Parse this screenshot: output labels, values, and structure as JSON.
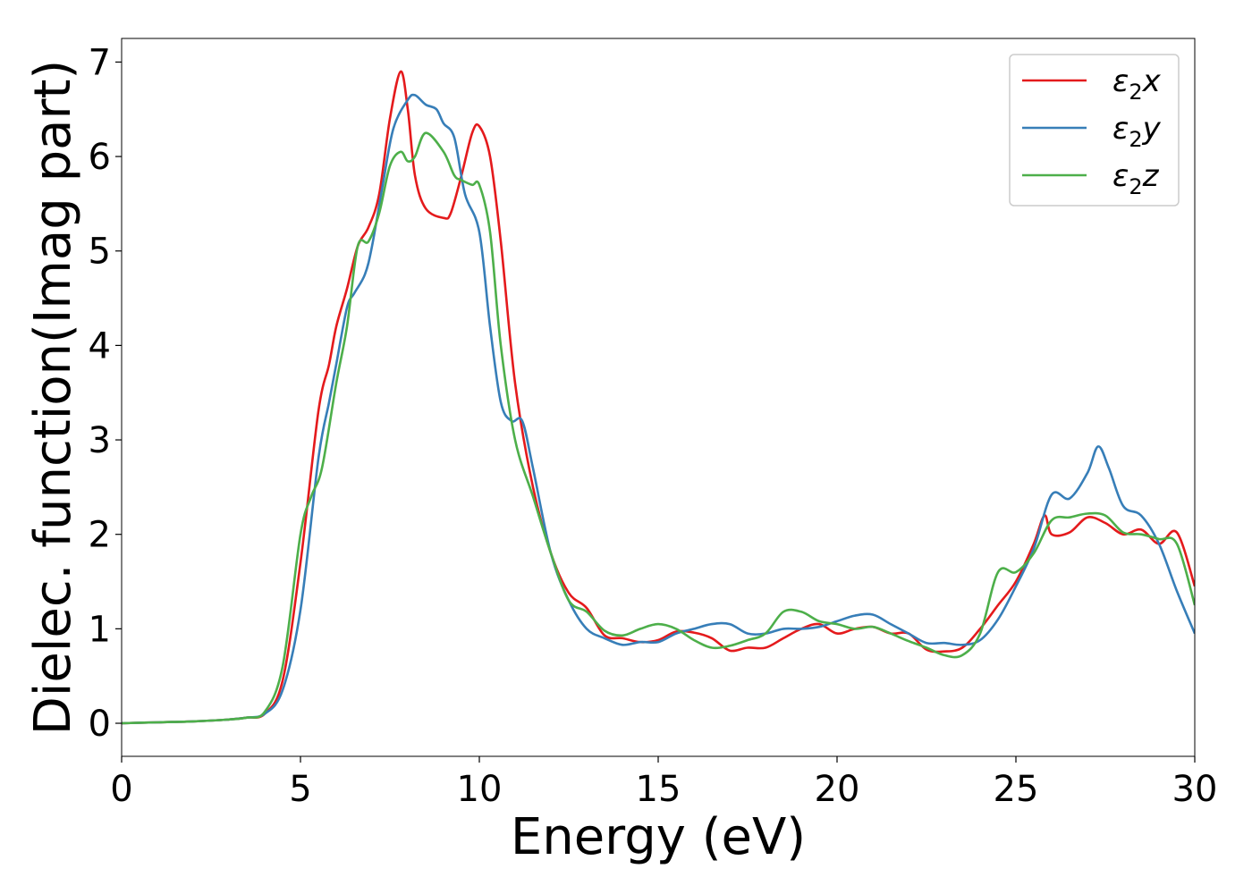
{
  "chart_data": {
    "type": "line",
    "title": "",
    "xlabel": "Energy (eV)",
    "ylabel": "Dielec. function(Imag part)",
    "xlim": [
      0,
      30
    ],
    "ylim": [
      -0.35,
      7.25
    ],
    "xticks": [
      0,
      5,
      10,
      15,
      20,
      25,
      30
    ],
    "yticks": [
      0,
      1,
      2,
      3,
      4,
      5,
      6,
      7
    ],
    "grid": false,
    "legend_position": "top-right",
    "series": [
      {
        "name": "ε2x",
        "legend_base": "ε",
        "legend_sub": "2",
        "legend_var": "x",
        "color": "#e41a1c",
        "x": [
          0,
          1,
          2,
          3,
          3.5,
          4,
          4.5,
          5,
          5.5,
          5.8,
          6,
          6.3,
          6.6,
          6.9,
          7.2,
          7.5,
          7.8,
          8,
          8.2,
          8.5,
          9,
          9.2,
          9.5,
          9.8,
          10,
          10.3,
          10.6,
          11,
          11.5,
          12,
          12.5,
          13,
          13.5,
          14,
          14.5,
          15,
          15.5,
          16,
          16.5,
          17,
          17.5,
          18,
          18.5,
          19,
          19.5,
          20,
          20.5,
          21,
          21.5,
          22,
          22.5,
          23,
          23.5,
          24,
          24.5,
          25,
          25.5,
          25.8,
          26,
          26.5,
          27,
          27.5,
          28,
          28.5,
          29,
          29.5,
          30
        ],
        "y": [
          0,
          0.01,
          0.02,
          0.04,
          0.06,
          0.1,
          0.45,
          1.7,
          3.3,
          3.8,
          4.2,
          4.6,
          5.05,
          5.25,
          5.6,
          6.4,
          6.9,
          6.5,
          5.8,
          5.45,
          5.35,
          5.4,
          5.8,
          6.25,
          6.32,
          6.0,
          5.1,
          3.6,
          2.5,
          1.8,
          1.38,
          1.22,
          0.93,
          0.9,
          0.86,
          0.88,
          0.97,
          0.96,
          0.9,
          0.77,
          0.8,
          0.8,
          0.9,
          1.0,
          1.05,
          0.95,
          1.0,
          1.02,
          0.95,
          0.95,
          0.78,
          0.76,
          0.8,
          1.0,
          1.25,
          1.5,
          1.9,
          2.2,
          2.0,
          2.02,
          2.18,
          2.12,
          2.0,
          2.05,
          1.9,
          2.02,
          1.45
        ]
      },
      {
        "name": "ε2y",
        "legend_base": "ε",
        "legend_sub": "2",
        "legend_var": "y",
        "color": "#377eb8",
        "x": [
          0,
          1,
          2,
          3,
          3.5,
          4,
          4.5,
          5,
          5.5,
          5.8,
          6,
          6.3,
          6.5,
          6.8,
          7,
          7.3,
          7.6,
          8,
          8.2,
          8.5,
          8.8,
          9,
          9.3,
          9.6,
          10,
          10.3,
          10.6,
          10.9,
          11.2,
          11.5,
          12,
          12.5,
          13,
          13.5,
          14,
          14.5,
          15,
          15.5,
          16,
          16.5,
          17,
          17.5,
          18,
          18.5,
          19,
          19.5,
          20,
          20.5,
          21,
          21.5,
          22,
          22.5,
          23,
          23.5,
          24,
          24.5,
          25,
          25.5,
          26,
          26.5,
          27,
          27.3,
          27.6,
          28,
          28.5,
          29,
          29.5,
          30
        ],
        "y": [
          0,
          0.01,
          0.02,
          0.04,
          0.06,
          0.1,
          0.35,
          1.2,
          2.8,
          3.4,
          3.8,
          4.4,
          4.55,
          4.75,
          5.05,
          5.7,
          6.3,
          6.6,
          6.65,
          6.55,
          6.5,
          6.35,
          6.2,
          5.6,
          5.2,
          4.2,
          3.4,
          3.2,
          3.2,
          2.7,
          1.8,
          1.3,
          1.0,
          0.9,
          0.83,
          0.86,
          0.86,
          0.95,
          1.0,
          1.05,
          1.05,
          0.95,
          0.95,
          1.0,
          1.0,
          1.02,
          1.08,
          1.14,
          1.15,
          1.05,
          0.95,
          0.85,
          0.85,
          0.83,
          0.88,
          1.1,
          1.45,
          1.85,
          2.42,
          2.38,
          2.65,
          2.93,
          2.7,
          2.3,
          2.2,
          1.9,
          1.4,
          0.95
        ]
      },
      {
        "name": "ε2z",
        "legend_base": "ε",
        "legend_sub": "2",
        "legend_var": "z",
        "color": "#4daf4a",
        "x": [
          0,
          1,
          2,
          3,
          3.5,
          4,
          4.5,
          5,
          5.3,
          5.6,
          6,
          6.3,
          6.6,
          6.9,
          7.2,
          7.5,
          7.8,
          8,
          8.2,
          8.5,
          9,
          9.3,
          9.5,
          9.8,
          10,
          10.3,
          10.6,
          11,
          11.5,
          12,
          12.5,
          13,
          13.5,
          14,
          14.5,
          15,
          15.5,
          16,
          16.5,
          17,
          17.5,
          18,
          18.5,
          19,
          19.5,
          20,
          20.5,
          21,
          21.5,
          22,
          22.5,
          23,
          23.5,
          24,
          24.5,
          25,
          25.5,
          26,
          26.5,
          27,
          27.5,
          28,
          28.5,
          29,
          29.5,
          30
        ],
        "y": [
          0,
          0.01,
          0.02,
          0.04,
          0.06,
          0.12,
          0.6,
          2.0,
          2.4,
          2.7,
          3.6,
          4.2,
          5.05,
          5.1,
          5.4,
          5.9,
          6.05,
          5.95,
          6.0,
          6.25,
          6.05,
          5.8,
          5.75,
          5.7,
          5.7,
          5.2,
          4.0,
          3.0,
          2.4,
          1.8,
          1.3,
          1.18,
          0.98,
          0.93,
          1.0,
          1.05,
          1.0,
          0.88,
          0.8,
          0.82,
          0.88,
          0.95,
          1.18,
          1.18,
          1.08,
          1.05,
          1.0,
          1.02,
          0.95,
          0.87,
          0.8,
          0.72,
          0.72,
          0.95,
          1.6,
          1.6,
          1.8,
          2.15,
          2.18,
          2.22,
          2.2,
          2.02,
          2.0,
          1.95,
          1.9,
          1.25
        ]
      }
    ]
  }
}
